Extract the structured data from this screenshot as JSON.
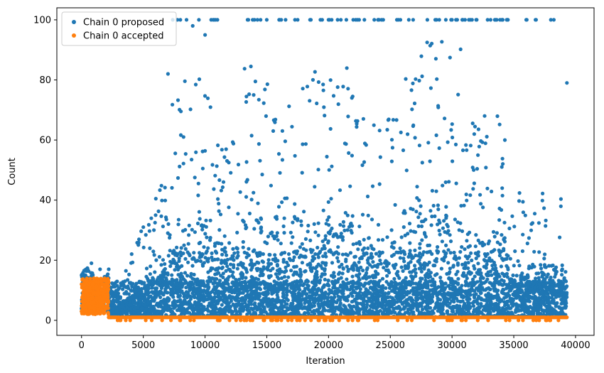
{
  "chart_data": {
    "type": "scatter",
    "title": "",
    "xlabel": "Iteration",
    "ylabel": "Count",
    "xlim": [
      -2000,
      41500
    ],
    "ylim": [
      -5,
      104
    ],
    "xticks": [
      0,
      5000,
      10000,
      15000,
      20000,
      25000,
      30000,
      35000,
      40000
    ],
    "xtick_labels": [
      "0",
      "5000",
      "10000",
      "15000",
      "20000",
      "25000",
      "30000",
      "35000",
      "40000"
    ],
    "yticks": [
      0,
      20,
      40,
      60,
      80,
      100
    ],
    "ytick_labels": [
      "0",
      "20",
      "40",
      "60",
      "80",
      "100"
    ],
    "legend_position": "top-left",
    "grid": false,
    "series": [
      {
        "name": "Chain 0 proposed",
        "color": "#1f77b4",
        "description_points": [
          {
            "x": 0,
            "y": 3
          },
          {
            "x": 0,
            "y": 15
          },
          {
            "x": 500,
            "y": 17
          },
          {
            "x": 800,
            "y": 19
          },
          {
            "x": 1500,
            "y": 17
          },
          {
            "x": 2200,
            "y": 17
          },
          {
            "x": 2500,
            "y": 4
          },
          {
            "x": 3000,
            "y": 6
          },
          {
            "x": 4000,
            "y": 10
          },
          {
            "x": 5000,
            "y": 31
          },
          {
            "x": 6000,
            "y": 35
          },
          {
            "x": 7000,
            "y": 82
          },
          {
            "x": 8000,
            "y": 100
          },
          {
            "x": 8500,
            "y": 100
          },
          {
            "x": 9000,
            "y": 98
          },
          {
            "x": 9500,
            "y": 100
          },
          {
            "x": 10000,
            "y": 95
          },
          {
            "x": 10500,
            "y": 100
          },
          {
            "x": 14000,
            "y": 100
          },
          {
            "x": 15000,
            "y": 100
          },
          {
            "x": 16000,
            "y": 100
          },
          {
            "x": 17500,
            "y": 100
          },
          {
            "x": 18500,
            "y": 100
          },
          {
            "x": 20000,
            "y": 100
          },
          {
            "x": 21000,
            "y": 100
          },
          {
            "x": 22000,
            "y": 100
          },
          {
            "x": 24000,
            "y": 100
          },
          {
            "x": 26500,
            "y": 100
          },
          {
            "x": 28000,
            "y": 100
          },
          {
            "x": 29500,
            "y": 100
          },
          {
            "x": 30000,
            "y": 100
          },
          {
            "x": 32000,
            "y": 100
          },
          {
            "x": 34500,
            "y": 100
          },
          {
            "x": 38000,
            "y": 100
          },
          {
            "x": 39300,
            "y": 79
          }
        ],
        "x_range": [
          0,
          39300
        ],
        "y_range": [
          1,
          100
        ]
      },
      {
        "name": "Chain 0 accepted",
        "color": "#ff7f0e",
        "x_range": [
          0,
          39300
        ],
        "y_range": [
          0,
          14
        ],
        "description_points": [
          {
            "x": 0,
            "y": 3
          },
          {
            "x": 0,
            "y": 12
          },
          {
            "x": 1000,
            "y": 14
          },
          {
            "x": 2000,
            "y": 13
          },
          {
            "x": 2200,
            "y": 1
          },
          {
            "x": 8000,
            "y": 0
          },
          {
            "x": 20000,
            "y": 1
          },
          {
            "x": 30000,
            "y": 0
          },
          {
            "x": 39300,
            "y": 1
          }
        ]
      }
    ]
  }
}
